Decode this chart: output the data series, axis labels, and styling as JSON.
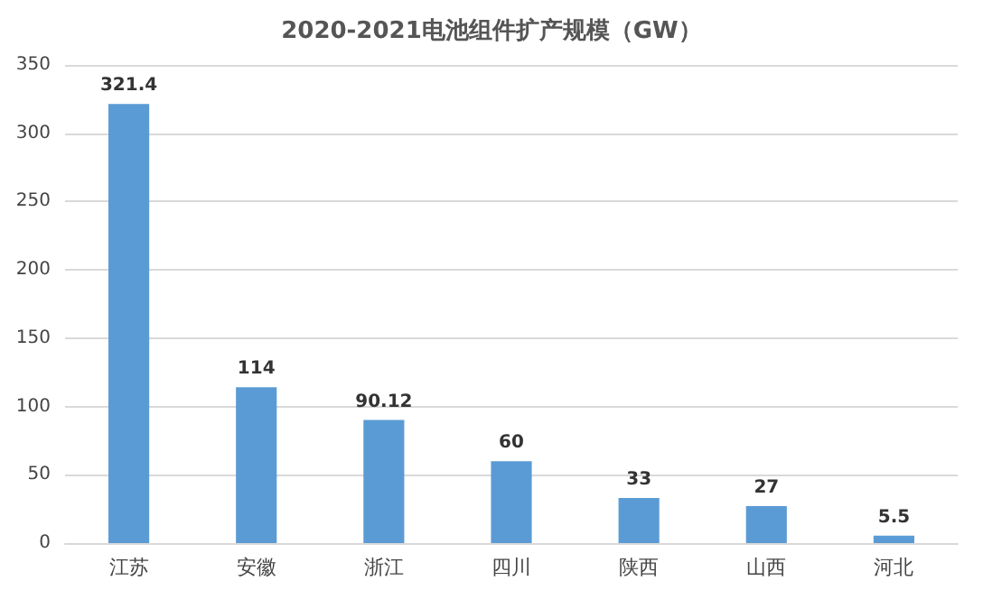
{
  "chart_data": {
    "type": "bar",
    "title": "2020-2021电池组件扩产规模（GW）",
    "categories": [
      "江苏",
      "安徽",
      "浙江",
      "四川",
      "陕西",
      "山西",
      "河北"
    ],
    "values": [
      321.4,
      114,
      90.12,
      60,
      33,
      27,
      5.5
    ],
    "color": "#5b9bd5",
    "ylim": [
      0,
      350
    ],
    "yticks": [
      0,
      50,
      100,
      150,
      200,
      250,
      300,
      350
    ],
    "grid": "y",
    "data_labels": true
  }
}
